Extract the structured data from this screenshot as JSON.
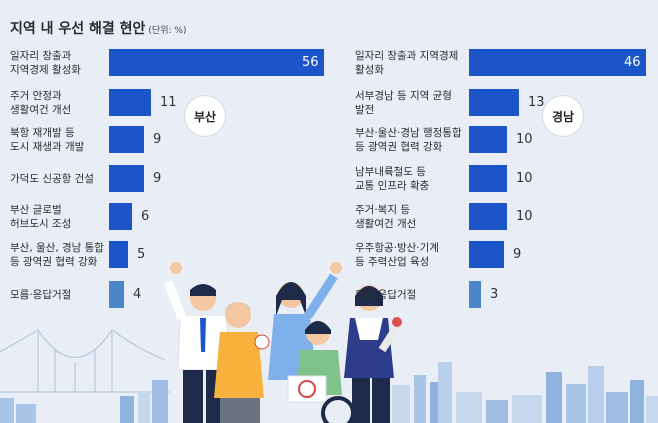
{
  "title": "지역 내 우선 해결 현안",
  "unit_note": "(단위: %)",
  "colors": {
    "bar": "#1b55c8",
    "bar_light": "#4a86c8",
    "background": "#e9eef6"
  },
  "chart_data": [
    {
      "type": "bar",
      "region": "부산",
      "categories": [
        "일자리 창출과\n지역경제 활성화",
        "주거 안정과\n생활여건 개선",
        "북항 재개발 등\n도시 재생과 개발",
        "가덕도 신공항 건설",
        "부산 글로벌\n허브도시 조성",
        "부산, 울산, 경남 통합\n등 광역권 협력 강화",
        "모름·응답거절"
      ],
      "values": [
        56,
        11,
        9,
        9,
        6,
        5,
        4
      ],
      "xlim": [
        0,
        56
      ],
      "grid": false
    },
    {
      "type": "bar",
      "region": "경남",
      "categories": [
        "일자리 창출과 지역경제\n활성화",
        "서부경남 등 지역 균형\n발전",
        "부산·울산·경남 행정통합\n등 광역권 협력 강화",
        "남부내륙철도 등\n교통 인프라 확충",
        "주거·복지 등\n생활여건 개선",
        "우주항공·방산·기계\n등 주력산업 육성",
        "모름·응답거절"
      ],
      "values": [
        46,
        13,
        10,
        10,
        10,
        9,
        3
      ],
      "xlim": [
        0,
        46
      ],
      "grid": false
    }
  ]
}
